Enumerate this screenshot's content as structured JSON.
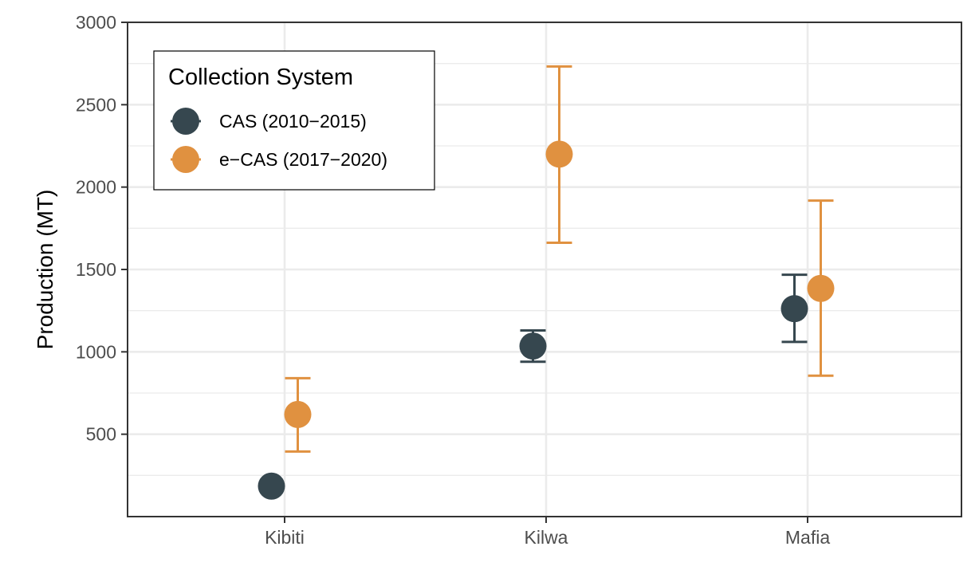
{
  "chart_data": {
    "type": "scatter",
    "subtype": "point-with-error-bars",
    "categories": [
      "Kibiti",
      "Kilwa",
      "Mafia"
    ],
    "xlabel": "",
    "ylabel": "Production (MT)",
    "ylim": [
      0,
      3000
    ],
    "yticks": [
      500,
      1000,
      1500,
      2000,
      2500,
      3000
    ],
    "grid": true,
    "legend": {
      "title": "Collection System",
      "position": "top-left"
    },
    "series": [
      {
        "name": "CAS (2010−2015)",
        "color": "#36474f",
        "values": [
          185,
          1035,
          1262
        ],
        "lower": [
          170,
          940,
          1060
        ],
        "upper": [
          200,
          1130,
          1468
        ]
      },
      {
        "name": "e−CAS (2017−2020)",
        "color": "#e09140",
        "values": [
          620,
          2200,
          1385
        ],
        "lower": [
          395,
          1662,
          855
        ],
        "upper": [
          840,
          2732,
          1918
        ]
      }
    ]
  }
}
